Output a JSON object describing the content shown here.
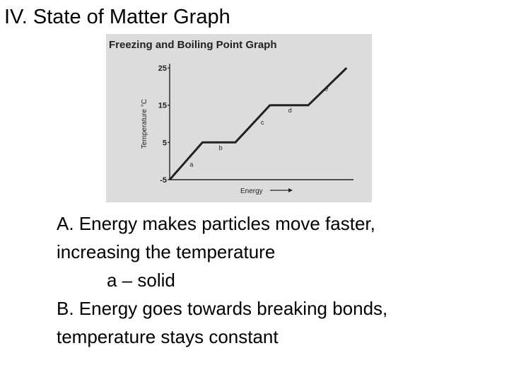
{
  "slide": {
    "title": "IV.  State of Matter Graph",
    "lines": [
      "A.  Energy makes particles move faster,",
      "increasing the temperature",
      "a – solid",
      "B.  Energy goes towards breaking bonds,",
      "temperature stays constant"
    ]
  },
  "chart_data": {
    "type": "line",
    "title": "Freezing and Boiling Point Graph",
    "xlabel": "Energy",
    "ylabel": "Temperature °C",
    "y_ticks": [
      -5,
      5,
      15,
      25
    ],
    "ylim": [
      -5,
      25
    ],
    "xlim": [
      0,
      10
    ],
    "grid": false,
    "x_tick_labels": false,
    "series": [
      {
        "x": [
          0,
          1.8,
          3.6,
          5.5,
          7.6,
          9.7
        ],
        "values": [
          -5,
          5,
          5,
          15,
          15,
          25
        ]
      }
    ],
    "segment_labels": [
      {
        "text": "a",
        "x": 1.1,
        "y": -1.5
      },
      {
        "text": "b",
        "x": 2.7,
        "y": 3.0
      },
      {
        "text": "c",
        "x": 5.0,
        "y": 9.8
      },
      {
        "text": "d",
        "x": 6.5,
        "y": 13.0
      },
      {
        "text": "e",
        "x": 8.5,
        "y": 18.8
      }
    ],
    "colors": {
      "background": "#dcdcdc",
      "ink": "#222222"
    }
  }
}
